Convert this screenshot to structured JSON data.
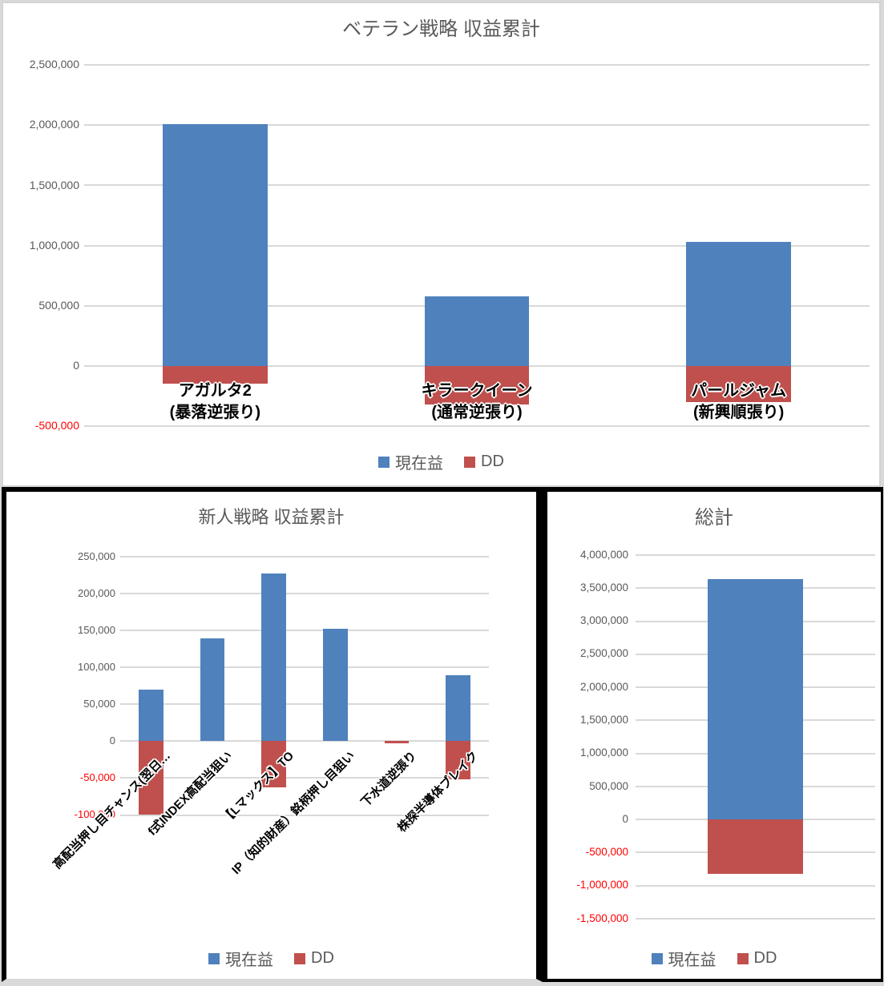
{
  "colors": {
    "series_blue": "#4F81BD",
    "series_red": "#C0504D",
    "gridline": "#D9D9D9",
    "axis_text": "#595959",
    "negative_axis_text": "#FF0000",
    "title_text": "#595959",
    "category_text": "#000000",
    "panel_border_thin": "#D3D3D3",
    "panel_border_thick": "#000000"
  },
  "chart_data": [
    {
      "type": "bar",
      "title": "ベテラン戦略 収益累計",
      "categories": [
        "アガルタ2\n(暴落逆張り)",
        "キラークイーン\n(通常逆張り)",
        "パールジャム\n(新興順張り)"
      ],
      "series": [
        {
          "name": "現在益",
          "color": "#4F81BD",
          "values": [
            2010000,
            580000,
            1030000
          ]
        },
        {
          "name": "DD",
          "color": "#C0504D",
          "values": [
            -150000,
            -320000,
            -300000
          ]
        }
      ],
      "ylim": [
        -500000,
        2500000
      ],
      "ytick_interval": 500000,
      "grid": true,
      "legend_position": "bottom"
    },
    {
      "type": "bar",
      "title": "新人戦略 収益累計",
      "categories": [
        "高配当押し目チャンス(翌日…",
        "f式INDEX高配当狙い",
        "【Lマックス】TO",
        "IP（知的財産）銘柄押し目狙い",
        "下水道逆張り",
        "株探半導体ブレイク"
      ],
      "series": [
        {
          "name": "現在益",
          "color": "#4F81BD",
          "values": [
            70000,
            139000,
            227000,
            152000,
            0,
            89000
          ]
        },
        {
          "name": "DD",
          "color": "#C0504D",
          "values": [
            -100000,
            0,
            -63000,
            0,
            -3000,
            -52000
          ]
        }
      ],
      "ylim": [
        -100000,
        250000
      ],
      "ytick_interval": 50000,
      "grid": true,
      "legend_position": "bottom",
      "category_label_rotation": -45
    },
    {
      "type": "bar",
      "title": "総計",
      "categories": [
        ""
      ],
      "series": [
        {
          "name": "現在益",
          "color": "#4F81BD",
          "values": [
            3640000
          ]
        },
        {
          "name": "DD",
          "color": "#C0504D",
          "values": [
            -820000
          ]
        }
      ],
      "ylim": [
        -1500000,
        4000000
      ],
      "ytick_interval": 500000,
      "grid": true,
      "legend_position": "bottom"
    }
  ]
}
